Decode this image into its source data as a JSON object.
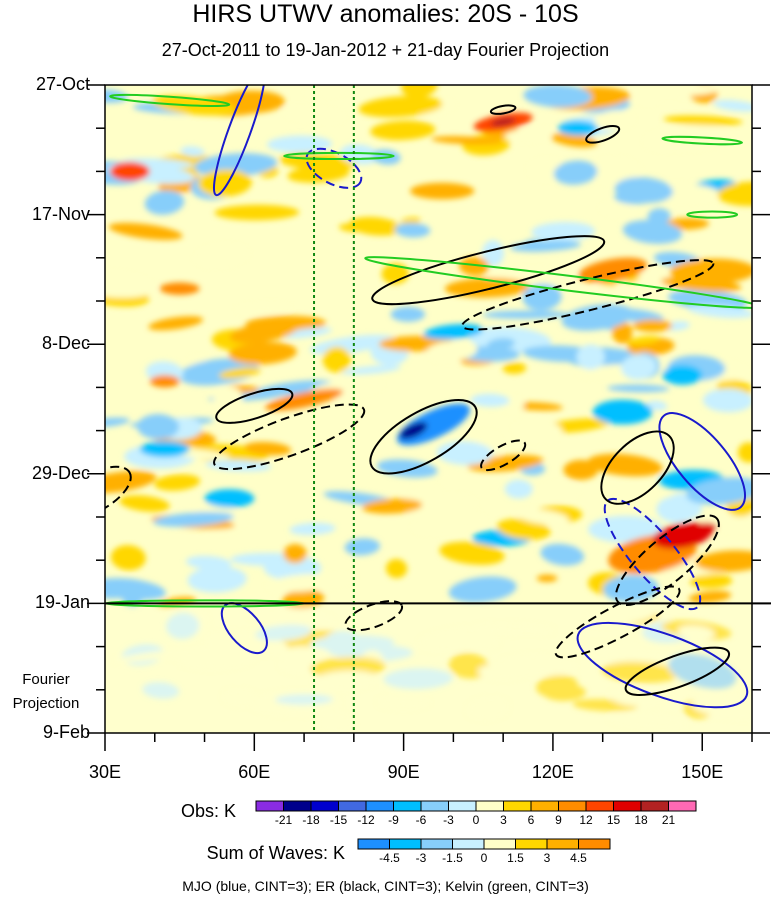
{
  "title": "HIRS UTWV anomalies: 20S - 10S",
  "subtitle": "27-Oct-2011 to 19-Jan-2012 + 21-day Fourier Projection",
  "footer": "MJO (blue, CINT=3); ER (black, CINT=3); Kelvin (green, CINT=3)",
  "colors": {
    "mjo": "#1a1acc",
    "er": "#000000",
    "kelvin": "#22cc22",
    "marker_line": "#118811"
  },
  "chart_data": {
    "type": "heatmap",
    "title": "HIRS UTWV anomalies: 20S - 10S",
    "subtitle": "27-Oct-2011 to 19-Jan-2012 + 21-day Fourier Projection",
    "x_axis": {
      "range": [
        30,
        160
      ],
      "ticks": [
        30,
        60,
        90,
        120,
        150
      ],
      "tick_labels": [
        "30E",
        "60E",
        "90E",
        "120E",
        "150E"
      ]
    },
    "y_axis": {
      "range_days": [
        0,
        105
      ],
      "ticks_days": [
        0,
        21,
        42,
        63,
        84,
        105
      ],
      "tick_labels": [
        "27-Oct",
        "17-Nov",
        "8-Dec",
        "29-Dec",
        "19-Jan",
        "9-Feb"
      ]
    },
    "forecast_start_day": 84,
    "projection_label": [
      "Fourier",
      "Projection"
    ],
    "reference_longitudes": [
      72,
      80
    ],
    "obs_colorbar": {
      "label": "Obs: K",
      "levels": [
        -21,
        -18,
        -15,
        -12,
        -9,
        -6,
        -3,
        0,
        3,
        6,
        9,
        12,
        15,
        18,
        21
      ],
      "colors": [
        "#8a2be2",
        "#00008b",
        "#0000cd",
        "#4169e1",
        "#1e90ff",
        "#00bfff",
        "#87cefa",
        "#c8f0ff",
        "#ffffc8",
        "#ffd700",
        "#ffb000",
        "#ff8c00",
        "#ff4500",
        "#e00000",
        "#b22222",
        "#ff69b4"
      ]
    },
    "waves_colorbar": {
      "label": "Sum of Waves: K",
      "levels": [
        -4.5,
        -3,
        -1.5,
        0,
        1.5,
        3,
        4.5
      ],
      "colors": [
        "#1e90ff",
        "#00bfff",
        "#87cefa",
        "#c8f0ff",
        "#ffffc8",
        "#ffd700",
        "#ffb000",
        "#ff8c00"
      ]
    },
    "contours": {
      "mjo": [
        {
          "lon": 57,
          "day": 7.5,
          "a": 2.2,
          "b": 11,
          "dash": false,
          "ang": 20
        },
        {
          "lon": 76,
          "day": 13.5,
          "a": 6,
          "b": 2.5,
          "dash": true,
          "ang": 28
        },
        {
          "lon": 150,
          "day": 61,
          "a": 12,
          "b": 4,
          "dash": false,
          "ang": 50
        },
        {
          "lon": 140,
          "day": 76,
          "a": 14,
          "b": 3.5,
          "dash": true,
          "ang": 50
        },
        {
          "lon": 142,
          "day": 94,
          "a": 18,
          "b": 5,
          "dash": false,
          "ang": 20
        },
        {
          "lon": 58,
          "day": 88,
          "a": 6,
          "b": 2.5,
          "dash": false,
          "ang": 50
        }
      ],
      "er": [
        {
          "lon": 60,
          "day": 52,
          "a": 8,
          "b": 2,
          "dash": false,
          "ang": -18
        },
        {
          "lon": 67,
          "day": 57,
          "a": 16,
          "b": 3,
          "dash": true,
          "ang": -20
        },
        {
          "lon": 94,
          "day": 57,
          "a": 12,
          "b": 4,
          "dash": false,
          "ang": -30
        },
        {
          "lon": 107,
          "day": 30,
          "a": 24,
          "b": 3,
          "dash": false,
          "ang": -14
        },
        {
          "lon": 127,
          "day": 34,
          "a": 26,
          "b": 2.5,
          "dash": true,
          "ang": -14
        },
        {
          "lon": 137,
          "day": 62,
          "a": 9,
          "b": 4,
          "dash": false,
          "ang": -45
        },
        {
          "lon": 143,
          "day": 77,
          "a": 13,
          "b": 3.5,
          "dash": true,
          "ang": -40
        },
        {
          "lon": 145,
          "day": 95,
          "a": 11,
          "b": 2.5,
          "dash": false,
          "ang": -20
        },
        {
          "lon": 110,
          "day": 4,
          "a": 2.5,
          "b": 0.6,
          "dash": false,
          "ang": -10
        },
        {
          "lon": 130,
          "day": 8,
          "a": 3.5,
          "b": 1,
          "dash": false,
          "ang": -20
        },
        {
          "lon": 133,
          "day": 87,
          "a": 14,
          "b": 2.5,
          "dash": true,
          "ang": -28
        },
        {
          "lon": 84,
          "day": 86,
          "a": 6,
          "b": 1.8,
          "dash": true,
          "ang": -20
        },
        {
          "lon": 28,
          "day": 66,
          "a": 8,
          "b": 3,
          "dash": true,
          "ang": -30
        },
        {
          "lon": 110,
          "day": 60,
          "a": 5,
          "b": 1.5,
          "dash": true,
          "ang": -30
        }
      ],
      "kelvin": [
        {
          "lon": 43,
          "day": 2.5,
          "a": 12,
          "b": 0.6,
          "dash": false,
          "ang": 4
        },
        {
          "lon": 77,
          "day": 11.5,
          "a": 11,
          "b": 0.5,
          "dash": false,
          "ang": 0
        },
        {
          "lon": 122,
          "day": 32,
          "a": 40,
          "b": 1.2,
          "dash": false,
          "ang": 7
        },
        {
          "lon": 150,
          "day": 9,
          "a": 8,
          "b": 0.5,
          "dash": false,
          "ang": 3
        },
        {
          "lon": 152,
          "day": 21,
          "a": 5,
          "b": 0.5,
          "dash": false,
          "ang": 0
        },
        {
          "lon": 50,
          "day": 84,
          "a": 20,
          "b": 0.5,
          "dash": false,
          "ang": 0
        }
      ]
    }
  }
}
